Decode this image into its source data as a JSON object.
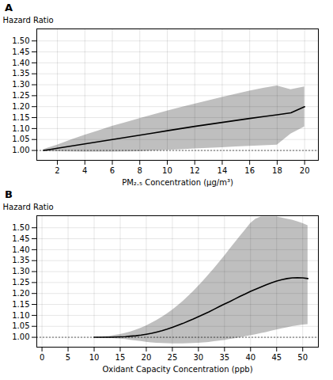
{
  "chart_data": [
    {
      "type": "line",
      "title": "A",
      "x_label": "PM₂.₅ Concentration (μg/m³)",
      "y_label": "Hazard Ratio",
      "x": [
        1.0,
        1.5,
        2.0,
        3.0,
        4.0,
        5.0,
        6.0,
        7.0,
        8.0,
        9.0,
        10.0,
        11.0,
        12.0,
        13.0,
        14.0,
        15.0,
        16.0,
        17.0,
        18.0,
        19.0,
        20.0
      ],
      "values": [
        1.0,
        1.005,
        1.01,
        1.02,
        1.03,
        1.04,
        1.05,
        1.06,
        1.07,
        1.08,
        1.09,
        1.1,
        1.11,
        1.119,
        1.128,
        1.137,
        1.146,
        1.155,
        1.163,
        1.172,
        1.2
      ],
      "upper": [
        1.005,
        1.015,
        1.025,
        1.048,
        1.07,
        1.09,
        1.11,
        1.128,
        1.146,
        1.163,
        1.18,
        1.196,
        1.212,
        1.227,
        1.242,
        1.257,
        1.271,
        1.284,
        1.295,
        1.278,
        1.29
      ],
      "lower": [
        0.995,
        0.995,
        0.995,
        0.994,
        0.993,
        0.993,
        0.993,
        0.994,
        0.995,
        0.998,
        1.001,
        1.004,
        1.007,
        1.01,
        1.013,
        1.016,
        1.019,
        1.022,
        1.025,
        1.075,
        1.108
      ],
      "reference_y": 1.0,
      "xlim": [
        0.5,
        21
      ],
      "ylim": [
        0.955,
        1.555
      ],
      "xticks": [
        2,
        4,
        6,
        8,
        10,
        12,
        14,
        16,
        18,
        20
      ],
      "yticks": [
        {
          "value": 1.0,
          "label": "1.00"
        },
        1.05,
        {
          "value": 1.1,
          "label": "1.10"
        },
        1.15,
        {
          "value": 1.2,
          "label": "1.20"
        },
        1.25,
        {
          "value": 1.3,
          "label": "1.30"
        },
        1.35,
        {
          "value": 1.4,
          "label": "1.40"
        },
        1.45,
        {
          "value": 1.5,
          "label": "1.50"
        }
      ],
      "grid": true
    },
    {
      "type": "line",
      "title": "B",
      "x_label": "Oxidant Capacity Concentration (ppb)",
      "y_label": "Hazard Ratio",
      "x": [
        10,
        11,
        12,
        13,
        14,
        15,
        16,
        17,
        18,
        19,
        20,
        21,
        22,
        23,
        24,
        25,
        26,
        27,
        28,
        29,
        30,
        31,
        32,
        33,
        34,
        35,
        36,
        37,
        38,
        39,
        40,
        41,
        42,
        43,
        44,
        45,
        46,
        47,
        48,
        49,
        50,
        51
      ],
      "values": [
        1.0,
        1.0,
        1.0,
        1.0,
        1.001,
        1.002,
        1.003,
        1.005,
        1.007,
        1.01,
        1.014,
        1.018,
        1.024,
        1.03,
        1.037,
        1.045,
        1.054,
        1.063,
        1.073,
        1.083,
        1.094,
        1.105,
        1.116,
        1.128,
        1.14,
        1.152,
        1.163,
        1.175,
        1.187,
        1.198,
        1.21,
        1.22,
        1.23,
        1.24,
        1.249,
        1.257,
        1.263,
        1.268,
        1.271,
        1.272,
        1.271,
        1.268
      ],
      "upper": [
        1.0,
        1.001,
        1.003,
        1.005,
        1.009,
        1.013,
        1.018,
        1.025,
        1.033,
        1.042,
        1.052,
        1.064,
        1.077,
        1.091,
        1.107,
        1.124,
        1.143,
        1.163,
        1.185,
        1.208,
        1.233,
        1.259,
        1.286,
        1.313,
        1.342,
        1.371,
        1.401,
        1.431,
        1.461,
        1.49,
        1.52,
        1.54,
        1.55,
        1.55,
        1.55,
        1.55,
        1.545,
        1.54,
        1.535,
        1.528,
        1.52,
        1.51
      ],
      "lower": [
        1.0,
        0.999,
        0.998,
        0.996,
        0.994,
        0.992,
        0.99,
        0.987,
        0.984,
        0.981,
        0.978,
        0.975,
        0.973,
        0.972,
        0.971,
        0.97,
        0.97,
        0.97,
        0.971,
        0.972,
        0.973,
        0.975,
        0.977,
        0.98,
        0.983,
        0.986,
        0.99,
        0.994,
        0.998,
        1.003,
        1.007,
        1.012,
        1.017,
        1.022,
        1.028,
        1.034,
        1.039,
        1.044,
        1.049,
        1.053,
        1.056,
        1.058
      ],
      "reference_y": 1.0,
      "xlim": [
        -1,
        53
      ],
      "ylim": [
        0.955,
        1.555
      ],
      "xticks": [
        0,
        5,
        10,
        15,
        20,
        25,
        30,
        35,
        40,
        45,
        50
      ],
      "yticks": [
        {
          "value": 1.0,
          "label": "1.00"
        },
        1.05,
        {
          "value": 1.1,
          "label": "1.10"
        },
        1.15,
        {
          "value": 1.2,
          "label": "1.20"
        },
        1.25,
        {
          "value": 1.3,
          "label": "1.30"
        },
        1.35,
        {
          "value": 1.4,
          "label": "1.40"
        },
        1.45,
        {
          "value": 1.5,
          "label": "1.50"
        }
      ],
      "grid": true
    }
  ]
}
